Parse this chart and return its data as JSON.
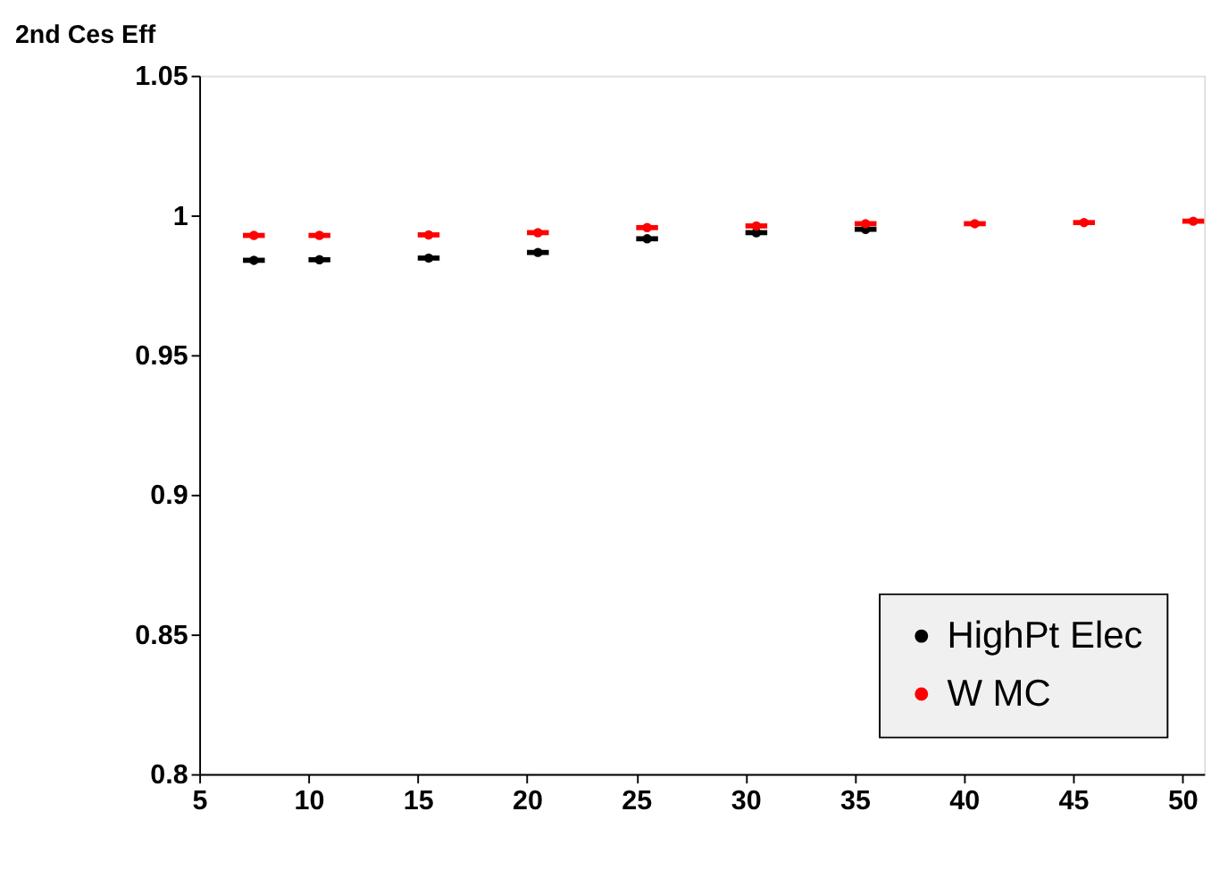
{
  "chart_data": {
    "type": "scatter",
    "title": "2nd Ces Eff",
    "x": [
      7.5,
      10.5,
      15.5,
      20.5,
      25.5,
      30.5,
      35.5,
      40.5,
      45.5,
      50.5
    ],
    "series": [
      {
        "name": "HighPt Elec",
        "color": "#000000",
        "values": [
          0.9839,
          0.9841,
          0.9847,
          0.9867,
          0.9916,
          0.9938,
          0.995,
          null,
          null,
          null
        ],
        "xerrors": [
          0.5,
          0.5,
          0.5,
          0.5,
          0.5,
          0.5,
          0.5,
          null,
          null,
          null
        ]
      },
      {
        "name": "W MC",
        "color": "#ff0000",
        "values": [
          0.9928,
          0.9928,
          0.993,
          0.9938,
          0.9956,
          0.9962,
          0.997,
          0.997,
          0.9974,
          0.9979
        ],
        "xerrors": [
          0.5,
          0.5,
          0.5,
          0.5,
          0.5,
          0.5,
          0.5,
          0.5,
          0.5,
          0.5
        ]
      }
    ],
    "xlim": [
      5,
      51
    ],
    "xticks": [
      5,
      10,
      15,
      20,
      25,
      30,
      35,
      40,
      45,
      50
    ],
    "ylim": [
      0.8,
      1.05
    ],
    "yticks": [
      0.8,
      0.85,
      0.9,
      0.95,
      1,
      1.05
    ],
    "grid": false,
    "legend": "bottom right",
    "marker": "circle"
  }
}
